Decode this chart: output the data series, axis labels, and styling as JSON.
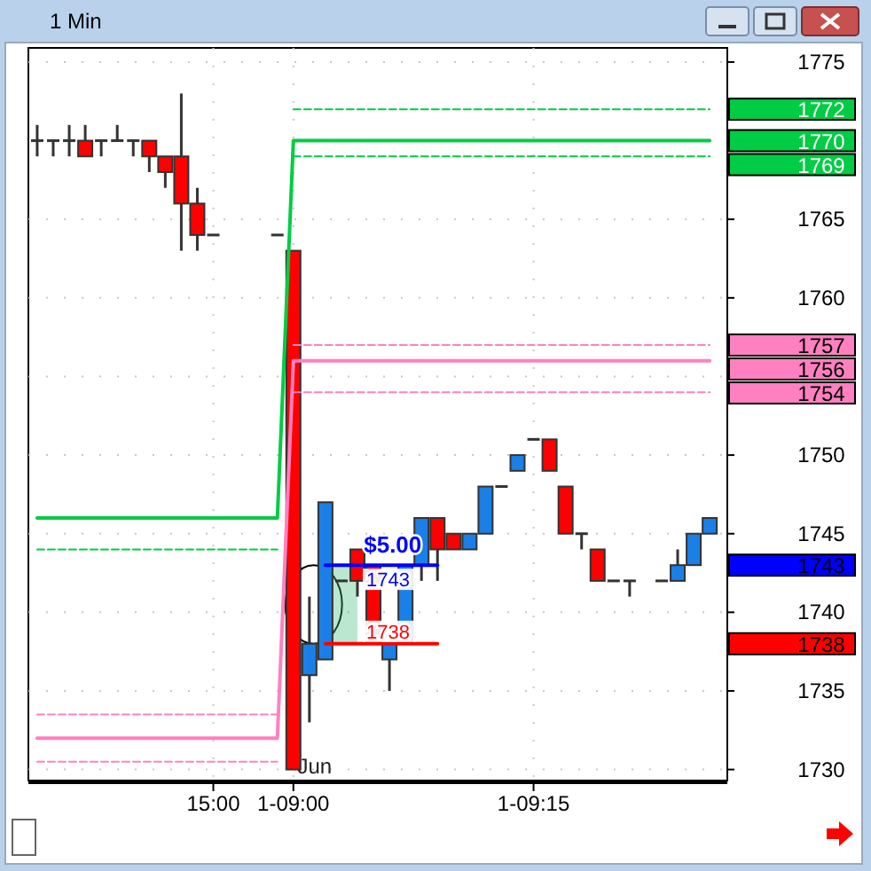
{
  "chart_data": {
    "type": "candlestick",
    "title": "1 Min",
    "categories": [
      null,
      null,
      null,
      null,
      null,
      null,
      null,
      null,
      null,
      null,
      null,
      "15:00",
      null,
      null,
      null,
      null,
      "1-09:00",
      null,
      null,
      null,
      null,
      null,
      null,
      null,
      null,
      null,
      null,
      null,
      null,
      null,
      null,
      "1-09:15",
      null,
      null,
      null,
      null,
      null,
      null,
      null,
      null,
      null,
      null,
      null
    ],
    "ohlc": [
      [
        1770,
        1771,
        1769,
        1770
      ],
      [
        1770,
        1770,
        1769,
        1770
      ],
      [
        1770,
        1771,
        1769,
        1770
      ],
      [
        1770,
        1771,
        1769,
        1769
      ],
      [
        1770,
        1770,
        1769,
        1770
      ],
      [
        1770,
        1771,
        1770,
        1770
      ],
      [
        1770,
        1770,
        1769,
        1770
      ],
      [
        1770,
        1770,
        1768,
        1769
      ],
      [
        1769,
        1769,
        1767,
        1768
      ],
      [
        1769,
        1773,
        1763,
        1766
      ],
      [
        1766,
        1767,
        1763,
        1764
      ],
      [
        1764,
        1764,
        1764,
        1764
      ],
      null,
      null,
      null,
      [
        1764,
        1764,
        1764,
        1764
      ],
      [
        1763,
        1763,
        1730,
        1730
      ],
      [
        1736,
        1741,
        1733,
        1738
      ],
      [
        1737,
        1747,
        1737,
        1747
      ],
      [
        1742,
        1742,
        1742,
        1742
      ],
      [
        1744,
        1744,
        1741,
        1742
      ],
      [
        1743,
        1743,
        1738,
        1738
      ],
      [
        1737,
        1738,
        1735,
        1738
      ],
      [
        1738,
        1743,
        1738,
        1743
      ],
      [
        1743,
        1746,
        1742,
        1746
      ],
      [
        1746,
        1746,
        1742,
        1744
      ],
      [
        1745,
        1745,
        1744,
        1744
      ],
      [
        1744,
        1745,
        1744,
        1745
      ],
      [
        1745,
        1748,
        1745,
        1748
      ],
      [
        1748,
        1748,
        1748,
        1748
      ],
      [
        1749,
        1750,
        1749,
        1750
      ],
      [
        1751,
        1751,
        1751,
        1751
      ],
      [
        1751,
        1751,
        1749,
        1749
      ],
      [
        1748,
        1748,
        1745,
        1745
      ],
      [
        1745,
        1745,
        1744,
        1745
      ],
      [
        1744,
        1744,
        1742,
        1742
      ],
      [
        1742,
        1742,
        1742,
        1742
      ],
      [
        1742,
        1742,
        1741,
        1742
      ],
      null,
      [
        1742,
        1742,
        1742,
        1742
      ],
      [
        1742,
        1744,
        1742,
        1743
      ],
      [
        1743,
        1745,
        1743,
        1745
      ],
      [
        1745,
        1746,
        1745,
        1746
      ]
    ],
    "series": [
      {
        "type": "line",
        "color": "#00cc44",
        "line_style": "solid",
        "values": [
          1746,
          1746,
          1746,
          1746,
          1746,
          1746,
          1746,
          1746,
          1746,
          1746,
          1746,
          1746,
          1746,
          1746,
          1746,
          1746,
          1770,
          1770,
          1770,
          1770,
          1770,
          1770,
          1770,
          1770,
          1770,
          1770,
          1770,
          1770,
          1770,
          1770,
          1770,
          1770,
          1770,
          1770,
          1770,
          1770,
          1770,
          1770,
          1770,
          1770,
          1770,
          1770,
          1770
        ]
      },
      {
        "type": "line",
        "color": "#00cc44",
        "line_style": "dashed",
        "values": [
          1744,
          1744,
          1744,
          1744,
          1744,
          1744,
          1744,
          1744,
          1744,
          1744,
          1744,
          1744,
          1744,
          1744,
          1744,
          1744,
          null,
          null,
          null,
          null,
          null,
          null,
          null,
          null,
          null,
          null,
          null,
          null,
          null,
          null,
          null,
          null,
          null,
          null,
          null,
          null,
          null,
          null,
          null,
          null,
          null,
          null,
          null
        ]
      },
      {
        "type": "line",
        "color": "#00cc44",
        "line_style": "dashed",
        "values": [
          null,
          null,
          null,
          null,
          null,
          null,
          null,
          null,
          null,
          null,
          null,
          null,
          null,
          null,
          null,
          null,
          1772,
          1772,
          1772,
          1772,
          1772,
          1772,
          1772,
          1772,
          1772,
          1772,
          1772,
          1772,
          1772,
          1772,
          1772,
          1772,
          1772,
          1772,
          1772,
          1772,
          1772,
          1772,
          1772,
          1772,
          1772,
          1772,
          1772
        ]
      },
      {
        "type": "line",
        "color": "#00cc44",
        "line_style": "dashed",
        "values": [
          null,
          null,
          null,
          null,
          null,
          null,
          null,
          null,
          null,
          null,
          null,
          null,
          null,
          null,
          null,
          null,
          1769,
          1769,
          1769,
          1769,
          1769,
          1769,
          1769,
          1769,
          1769,
          1769,
          1769,
          1769,
          1769,
          1769,
          1769,
          1769,
          1769,
          1769,
          1769,
          1769,
          1769,
          1769,
          1769,
          1769,
          1769,
          1769,
          1769
        ]
      },
      {
        "type": "line",
        "color": "#ff80c0",
        "line_style": "solid",
        "values": [
          1732,
          1732,
          1732,
          1732,
          1732,
          1732,
          1732,
          1732,
          1732,
          1732,
          1732,
          1732,
          1732,
          1732,
          1732,
          1732,
          1756,
          1756,
          1756,
          1756,
          1756,
          1756,
          1756,
          1756,
          1756,
          1756,
          1756,
          1756,
          1756,
          1756,
          1756,
          1756,
          1756,
          1756,
          1756,
          1756,
          1756,
          1756,
          1756,
          1756,
          1756,
          1756,
          1756
        ]
      },
      {
        "type": "line",
        "color": "#ff80c0",
        "line_style": "dashed",
        "values": [
          1733.5,
          1733.5,
          1733.5,
          1733.5,
          1733.5,
          1733.5,
          1733.5,
          1733.5,
          1733.5,
          1733.5,
          1733.5,
          1733.5,
          1733.5,
          1733.5,
          1733.5,
          1733.5,
          null,
          null,
          null,
          null,
          null,
          null,
          null,
          null,
          null,
          null,
          null,
          null,
          null,
          null,
          null,
          null,
          null,
          null,
          null,
          null,
          null,
          null,
          null,
          null,
          null,
          null,
          null
        ]
      },
      {
        "type": "line",
        "color": "#ff80c0",
        "line_style": "dashed",
        "values": [
          1730.5,
          1730.5,
          1730.5,
          1730.5,
          1730.5,
          1730.5,
          1730.5,
          1730.5,
          1730.5,
          1730.5,
          1730.5,
          1730.5,
          1730.5,
          1730.5,
          1730.5,
          1730.5,
          null,
          null,
          null,
          null,
          null,
          null,
          null,
          null,
          null,
          null,
          null,
          null,
          null,
          null,
          null,
          null,
          null,
          null,
          null,
          null,
          null,
          null,
          null,
          null,
          null,
          null,
          null
        ]
      },
      {
        "type": "line",
        "color": "#ff80c0",
        "line_style": "dashed",
        "values": [
          null,
          null,
          null,
          null,
          null,
          null,
          null,
          null,
          null,
          null,
          null,
          null,
          null,
          null,
          null,
          null,
          1757,
          1757,
          1757,
          1757,
          1757,
          1757,
          1757,
          1757,
          1757,
          1757,
          1757,
          1757,
          1757,
          1757,
          1757,
          1757,
          1757,
          1757,
          1757,
          1757,
          1757,
          1757,
          1757,
          1757,
          1757,
          1757,
          1757
        ]
      },
      {
        "type": "line",
        "color": "#ff80c0",
        "line_style": "dashed",
        "values": [
          null,
          null,
          null,
          null,
          null,
          null,
          null,
          null,
          null,
          null,
          null,
          null,
          null,
          null,
          null,
          null,
          1754,
          1754,
          1754,
          1754,
          1754,
          1754,
          1754,
          1754,
          1754,
          1754,
          1754,
          1754,
          1754,
          1754,
          1754,
          1754,
          1754,
          1754,
          1754,
          1754,
          1754,
          1754,
          1754,
          1754,
          1754,
          1754,
          1754
        ]
      },
      {
        "type": "line",
        "color": "#0000ff",
        "line_style": "solid",
        "values": [
          null,
          null,
          null,
          null,
          null,
          null,
          null,
          null,
          null,
          null,
          null,
          null,
          null,
          null,
          null,
          null,
          null,
          null,
          1743,
          1743,
          1743,
          1743,
          1743,
          1743,
          1743,
          1743,
          null,
          null,
          null,
          null,
          null,
          null,
          null,
          null,
          null,
          null,
          null,
          null,
          null,
          null,
          null,
          null,
          null
        ],
        "value_labels": [
          null,
          null,
          null,
          null,
          null,
          null,
          null,
          null,
          null,
          null,
          null,
          null,
          null,
          null,
          null,
          null,
          null,
          null,
          null,
          null,
          null,
          "1743",
          null,
          null,
          null,
          null,
          null,
          null,
          null,
          null,
          null,
          null,
          null,
          null,
          null,
          null,
          null,
          null,
          null,
          null,
          null,
          null,
          null
        ]
      },
      {
        "type": "line",
        "color": "#ff0000",
        "line_style": "solid",
        "values": [
          null,
          null,
          null,
          null,
          null,
          null,
          null,
          null,
          null,
          null,
          null,
          null,
          null,
          null,
          null,
          null,
          null,
          null,
          1738,
          1738,
          1738,
          1738,
          1738,
          1738,
          1738,
          1738,
          null,
          null,
          null,
          null,
          null,
          null,
          null,
          null,
          null,
          null,
          null,
          null,
          null,
          null,
          null,
          null,
          null
        ],
        "value_labels": [
          null,
          null,
          null,
          null,
          null,
          null,
          null,
          null,
          null,
          null,
          null,
          null,
          null,
          null,
          null,
          null,
          null,
          null,
          null,
          null,
          null,
          "1738",
          null,
          null,
          null,
          null,
          null,
          null,
          null,
          null,
          null,
          null,
          null,
          null,
          null,
          null,
          null,
          null,
          null,
          null,
          null,
          null,
          null
        ]
      }
    ],
    "ylim": [
      1729.3,
      1775.9
    ],
    "yticks": [
      1730,
      1735,
      1738,
      1740,
      1743,
      1745,
      1750,
      1754,
      {
        "value": 1755,
        "label": null
      },
      1756,
      1757,
      1760,
      1765,
      1769,
      1770,
      1772,
      1775
    ],
    "grid": true,
    "annotations": [
      "Jun",
      {
        "text": "$5.00",
        "y": 1743
      }
    ]
  }
}
